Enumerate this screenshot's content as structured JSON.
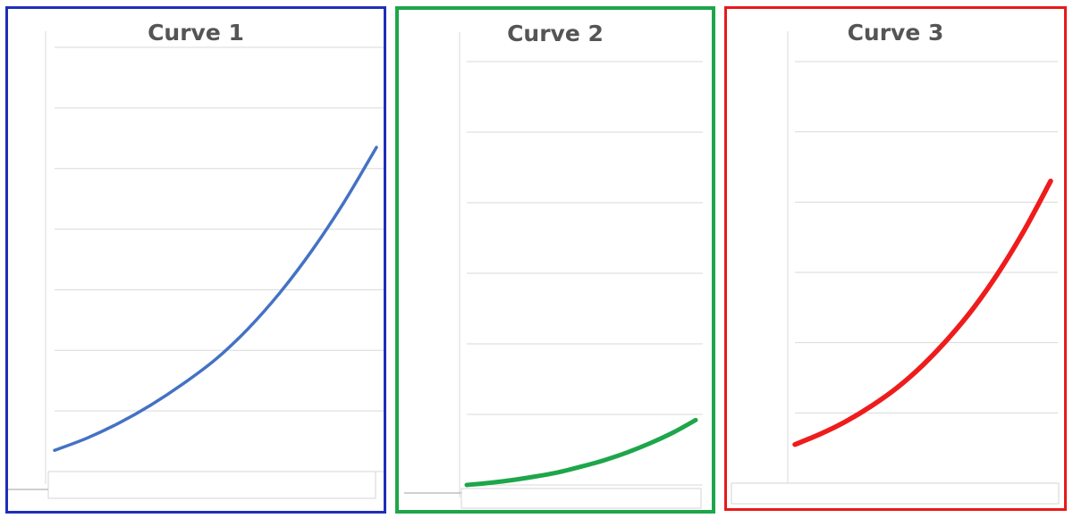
{
  "chart_data": [
    {
      "type": "line",
      "title": "Curve 1",
      "xlabel": "",
      "ylabel": "",
      "ylim": [
        0,
        7
      ],
      "grid": true,
      "colors": {
        "line": "#4472c4",
        "frame": "#1f2eb8"
      },
      "series": [
        {
          "values": [
            0.35,
            0.55,
            0.8,
            1.1,
            1.45,
            1.85,
            2.35,
            2.95,
            3.65,
            4.45,
            5.35
          ]
        }
      ]
    },
    {
      "type": "line",
      "title": "Curve 2",
      "xlabel": "",
      "ylabel": "",
      "ylim": [
        0,
        6
      ],
      "grid": true,
      "colors": {
        "line": "#1ea64a",
        "frame": "#1ea64a"
      },
      "series": [
        {
          "values": [
            0.0,
            0.03,
            0.07,
            0.12,
            0.18,
            0.26,
            0.35,
            0.46,
            0.59,
            0.74,
            0.92
          ]
        }
      ]
    },
    {
      "type": "line",
      "title": "Curve 3",
      "xlabel": "",
      "ylabel": "",
      "ylim": [
        0,
        6
      ],
      "grid": true,
      "colors": {
        "line": "#ee1c1c",
        "frame": "#e8191b"
      },
      "series": [
        {
          "values": [
            0.55,
            0.7,
            0.88,
            1.1,
            1.36,
            1.68,
            2.06,
            2.5,
            3.02,
            3.62,
            4.3
          ]
        }
      ]
    }
  ]
}
